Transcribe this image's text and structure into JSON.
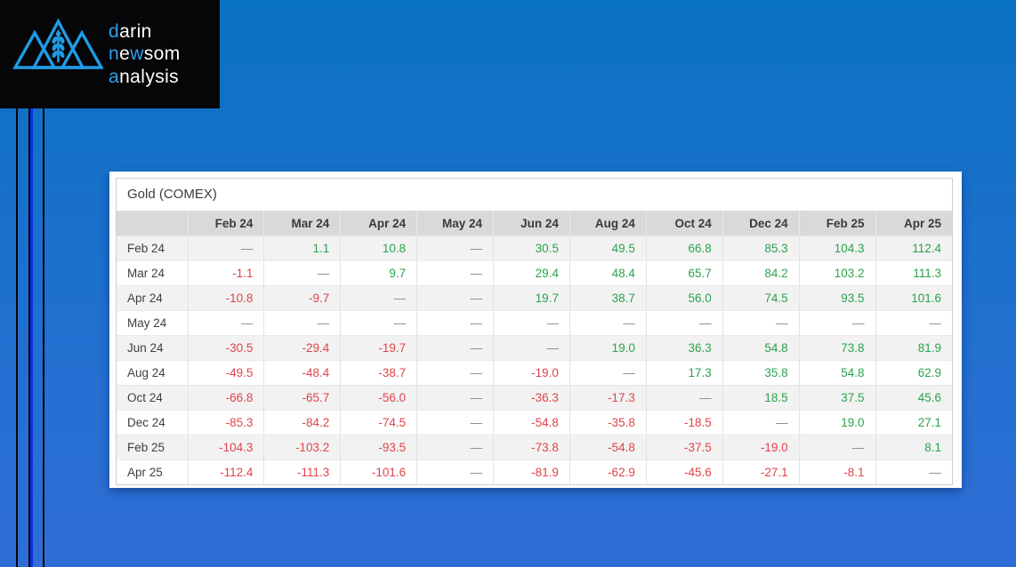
{
  "logo": {
    "icon": "mountains-wheat-icon",
    "lines": [
      {
        "segments": [
          {
            "text": "d",
            "accent": true
          },
          {
            "text": "arin",
            "accent": false
          }
        ]
      },
      {
        "segments": [
          {
            "text": "n",
            "accent": true
          },
          {
            "text": "e",
            "accent": false
          },
          {
            "text": "w",
            "accent": true
          },
          {
            "text": "som",
            "accent": false
          }
        ]
      },
      {
        "segments": [
          {
            "text": "a",
            "accent": true
          },
          {
            "text": "nalysis",
            "accent": false
          }
        ]
      }
    ]
  },
  "colors": {
    "brand_blue": "#2b9fe9",
    "background_top": "#0a72c2",
    "background_bottom": "#2f6ed7",
    "stripe_blue": "#0c31e2",
    "positive_green": "#2ba24e",
    "negative_red": "#e0434b",
    "dash_grey": "#8c8c8c",
    "header_grey": "#d9d9d9",
    "zebra_grey": "#f2f2f2"
  },
  "card": {
    "title": "Gold (COMEX)",
    "table": {
      "column_headers": [
        "Feb 24",
        "Mar 24",
        "Apr 24",
        "May 24",
        "Jun 24",
        "Aug 24",
        "Oct 24",
        "Dec 24",
        "Feb 25",
        "Apr 25"
      ],
      "rows": [
        {
          "label": "Feb 24",
          "values": [
            "—",
            "1.1",
            "10.8",
            "—",
            "30.5",
            "49.5",
            "66.8",
            "85.3",
            "104.3",
            "112.4"
          ]
        },
        {
          "label": "Mar 24",
          "values": [
            "-1.1",
            "—",
            "9.7",
            "—",
            "29.4",
            "48.4",
            "65.7",
            "84.2",
            "103.2",
            "111.3"
          ]
        },
        {
          "label": "Apr 24",
          "values": [
            "-10.8",
            "-9.7",
            "—",
            "—",
            "19.7",
            "38.7",
            "56.0",
            "74.5",
            "93.5",
            "101.6"
          ]
        },
        {
          "label": "May 24",
          "values": [
            "—",
            "—",
            "—",
            "—",
            "—",
            "—",
            "—",
            "—",
            "—",
            "—"
          ]
        },
        {
          "label": "Jun 24",
          "values": [
            "-30.5",
            "-29.4",
            "-19.7",
            "—",
            "—",
            "19.0",
            "36.3",
            "54.8",
            "73.8",
            "81.9"
          ]
        },
        {
          "label": "Aug 24",
          "values": [
            "-49.5",
            "-48.4",
            "-38.7",
            "—",
            "-19.0",
            "—",
            "17.3",
            "35.8",
            "54.8",
            "62.9"
          ]
        },
        {
          "label": "Oct 24",
          "values": [
            "-66.8",
            "-65.7",
            "-56.0",
            "—",
            "-36.3",
            "-17.3",
            "—",
            "18.5",
            "37.5",
            "45.6"
          ]
        },
        {
          "label": "Dec 24",
          "values": [
            "-85.3",
            "-84.2",
            "-74.5",
            "—",
            "-54.8",
            "-35.8",
            "-18.5",
            "—",
            "19.0",
            "27.1"
          ]
        },
        {
          "label": "Feb 25",
          "values": [
            "-104.3",
            "-103.2",
            "-93.5",
            "—",
            "-73.8",
            "-54.8",
            "-37.5",
            "-19.0",
            "—",
            "8.1"
          ]
        },
        {
          "label": "Apr 25",
          "values": [
            "-112.4",
            "-111.3",
            "-101.6",
            "—",
            "-81.9",
            "-62.9",
            "-45.6",
            "-27.1",
            "-8.1",
            "—"
          ]
        }
      ]
    }
  }
}
